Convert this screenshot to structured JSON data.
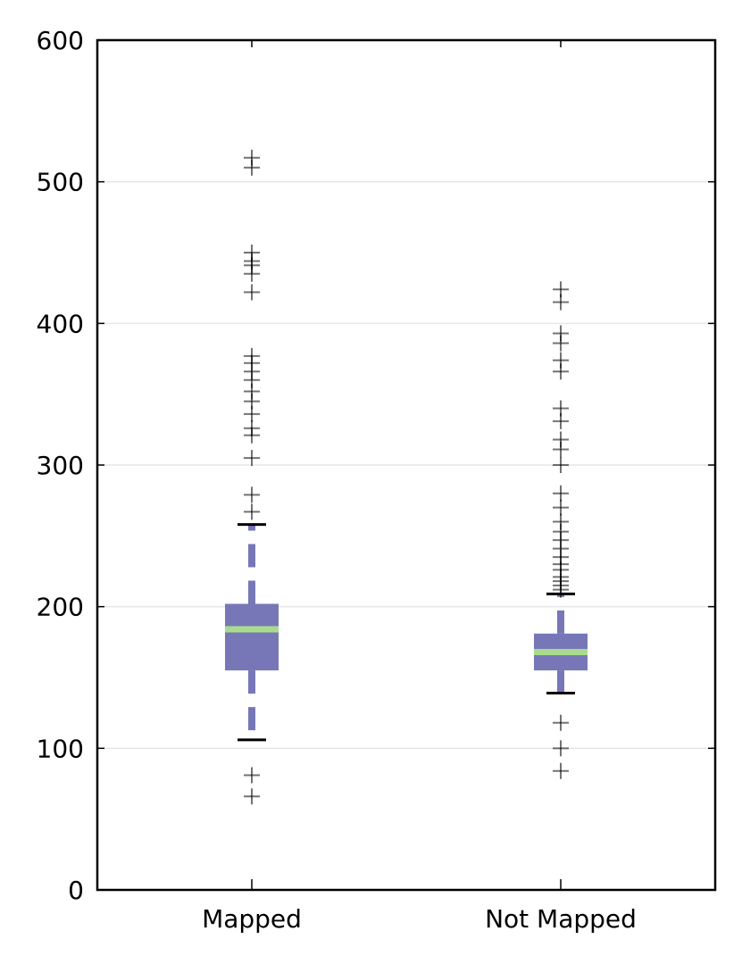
{
  "chart_data": {
    "type": "box",
    "title": "",
    "xlabel": "",
    "ylabel": "",
    "ylim": [
      0,
      600
    ],
    "y_ticks": [
      0,
      100,
      200,
      300,
      400,
      500,
      600
    ],
    "y_tick_labels": [
      "0",
      "100",
      "200",
      "300",
      "400",
      "500",
      "600"
    ],
    "grid": "horizontal",
    "categories": [
      "Mapped",
      "Not Mapped"
    ],
    "boxes": [
      {
        "label": "Mapped",
        "q1": 155,
        "median": 184,
        "q3": 202,
        "whisker_low": 106,
        "whisker_high": 258,
        "outliers": [
          66,
          81,
          267,
          279,
          305,
          321,
          326,
          336,
          345,
          352,
          360,
          366,
          372,
          377,
          422,
          435,
          441,
          444,
          450,
          510,
          517
        ]
      },
      {
        "label": "Not Mapped",
        "q1": 155,
        "median": 168,
        "q3": 181,
        "whisker_low": 139,
        "whisker_high": 209,
        "outliers": [
          84,
          100,
          118,
          212,
          215,
          218,
          221,
          226,
          230,
          235,
          241,
          247,
          253,
          260,
          270,
          280,
          300,
          311,
          318,
          331,
          340,
          366,
          374,
          386,
          393,
          415,
          424
        ]
      }
    ],
    "colors": {
      "box": "#7777b8",
      "median": "#a8dc8c",
      "cap": "#000000",
      "outlier": "#000000",
      "grid": "#e6e6e6"
    }
  }
}
